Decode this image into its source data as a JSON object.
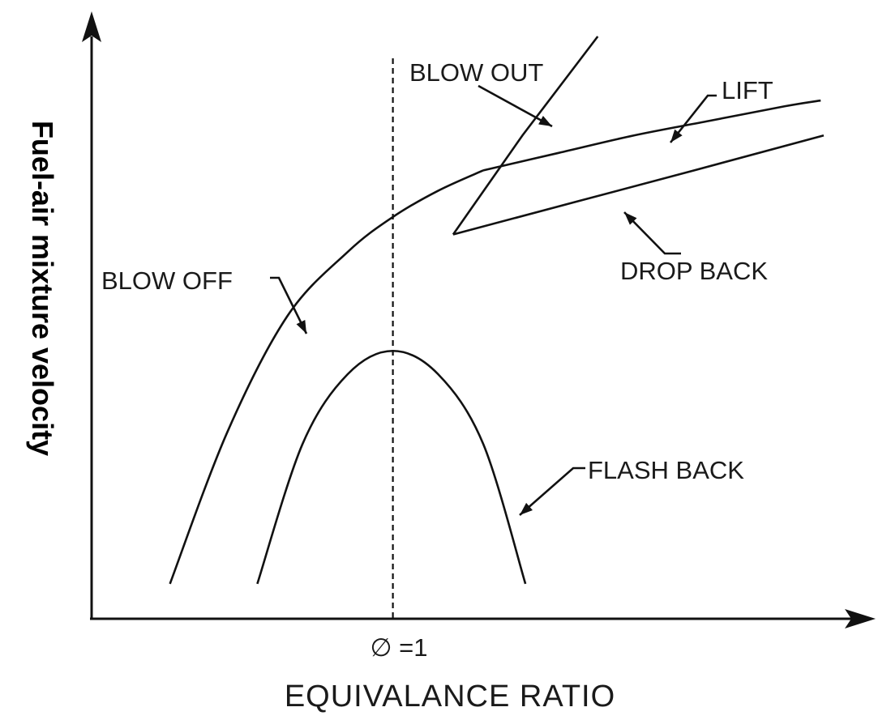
{
  "chart_data": {
    "type": "line",
    "title": "",
    "xlabel": "EQUIVALANCE RATIO",
    "ylabel": "Fuel-air mixture velocity",
    "x_ticks": [
      {
        "x": 1.0,
        "label": "∅ =1"
      }
    ],
    "reference_line": {
      "x": 1.0,
      "style": "dashed"
    },
    "xlim": [
      0.0,
      2.5
    ],
    "ylim": [
      0.0,
      1.0
    ],
    "grid": false,
    "series": [
      {
        "name": "BLOW OFF",
        "points": [
          [
            0.26,
            0.06
          ],
          [
            0.45,
            0.32
          ],
          [
            0.65,
            0.52
          ],
          [
            0.85,
            0.63
          ],
          [
            1.0,
            0.69
          ],
          [
            1.15,
            0.735
          ],
          [
            1.3,
            0.77
          ]
        ]
      },
      {
        "name": "LIFT",
        "points": [
          [
            1.3,
            0.77
          ],
          [
            1.55,
            0.8
          ],
          [
            1.8,
            0.83
          ],
          [
            2.05,
            0.855
          ],
          [
            2.3,
            0.88
          ],
          [
            2.42,
            0.89
          ]
        ]
      },
      {
        "name": "DROP BACK",
        "points": [
          [
            1.2,
            0.66
          ],
          [
            1.6,
            0.715
          ],
          [
            2.0,
            0.77
          ],
          [
            2.43,
            0.83
          ]
        ]
      },
      {
        "name": "BLOW OUT",
        "points": [
          [
            1.2,
            0.66
          ],
          [
            1.43,
            0.83
          ],
          [
            1.68,
            1.0
          ]
        ]
      },
      {
        "name": "FLASH BACK",
        "points": [
          [
            0.55,
            0.06
          ],
          [
            0.7,
            0.3
          ],
          [
            0.85,
            0.42
          ],
          [
            1.0,
            0.46
          ],
          [
            1.15,
            0.42
          ],
          [
            1.3,
            0.3
          ],
          [
            1.44,
            0.06
          ]
        ]
      }
    ],
    "annotations": [
      {
        "text": "BLOW OUT",
        "target_series": "BLOW OUT"
      },
      {
        "text": "LIFT",
        "target_series": "LIFT"
      },
      {
        "text": "BLOW OFF",
        "target_series": "BLOW OFF"
      },
      {
        "text": "DROP BACK",
        "target_series": "DROP BACK"
      },
      {
        "text": "FLASH BACK",
        "target_series": "FLASH BACK"
      }
    ]
  }
}
